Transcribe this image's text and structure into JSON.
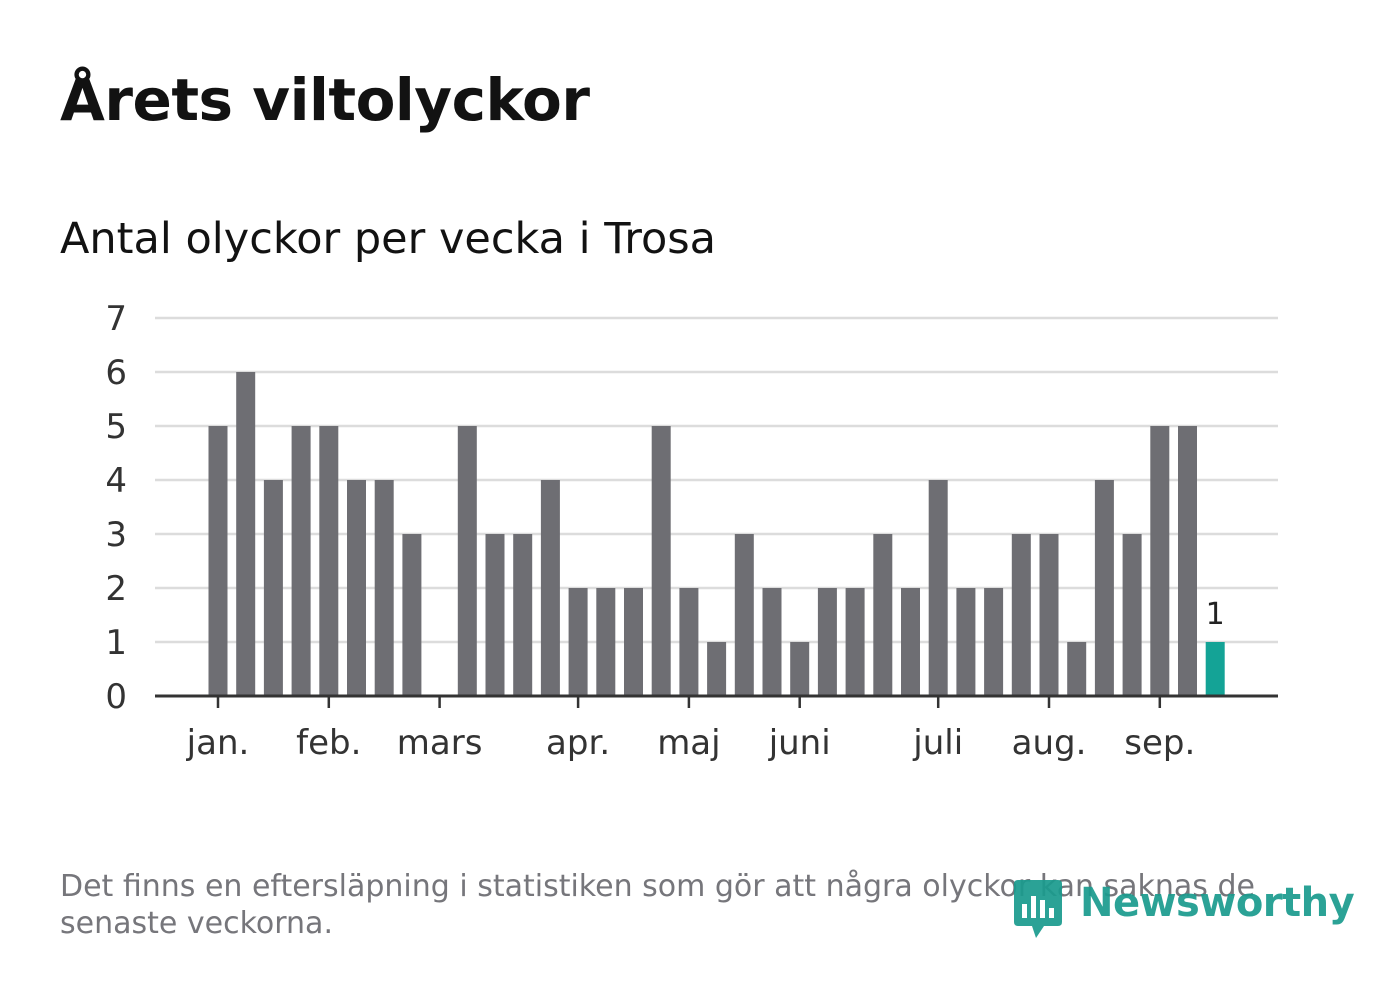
{
  "title": "Årets viltolyckor",
  "subtitle": "Antal olyckor per vecka i Trosa",
  "footnote": "Det finns en eftersläpning i statistiken som gör att några olyckor kan saknas de senaste veckorna.",
  "brand": {
    "name": "Newsworthy",
    "icon": "newsworthy-logo-icon",
    "color": "#1a9b8e"
  },
  "colors": {
    "bar": "#6e6e73",
    "highlight": "#14a396",
    "grid": "#dcdcdc",
    "axis": "#333333"
  },
  "chart_data": {
    "type": "bar",
    "title": "Antal olyckor per vecka i Trosa",
    "xlabel": "",
    "ylabel": "",
    "ylim": [
      0,
      7
    ],
    "yticks": [
      0,
      1,
      2,
      3,
      4,
      5,
      6,
      7
    ],
    "grid": true,
    "x_unit": "week",
    "month_ticks": [
      {
        "label": "jan.",
        "week": 1
      },
      {
        "label": "feb.",
        "week": 5
      },
      {
        "label": "mars",
        "week": 9
      },
      {
        "label": "apr.",
        "week": 14
      },
      {
        "label": "maj",
        "week": 18
      },
      {
        "label": "juni",
        "week": 22
      },
      {
        "label": "juli",
        "week": 27
      },
      {
        "label": "aug.",
        "week": 31
      },
      {
        "label": "sep.",
        "week": 35
      }
    ],
    "weeks": [
      1,
      2,
      3,
      4,
      5,
      6,
      7,
      8,
      9,
      10,
      11,
      12,
      13,
      14,
      15,
      16,
      17,
      18,
      19,
      20,
      21,
      22,
      23,
      24,
      25,
      26,
      27,
      28,
      29,
      30,
      31,
      32,
      33,
      34,
      35,
      36,
      37
    ],
    "values": [
      5,
      6,
      4,
      5,
      5,
      4,
      4,
      3,
      0,
      5,
      3,
      3,
      4,
      2,
      2,
      2,
      5,
      2,
      1,
      3,
      2,
      1,
      2,
      2,
      3,
      2,
      4,
      2,
      2,
      3,
      3,
      1,
      4,
      3,
      5,
      5,
      1
    ],
    "highlight_index": 36,
    "highlight_label": "1"
  }
}
